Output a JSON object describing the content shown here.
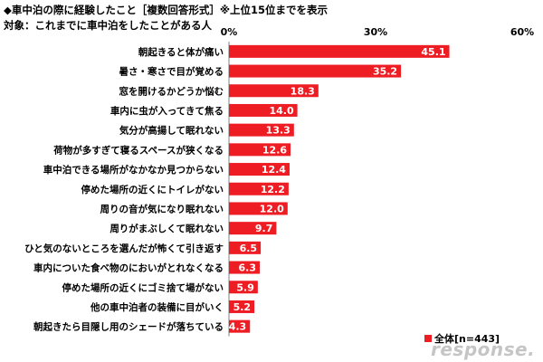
{
  "title": "◆車中泊の際に経験したこと［複数回答形式］※上位15位までを表示",
  "subtitle": "対象：これまでに車中泊をしたことがある人",
  "legend": {
    "label": "全体[n=443]"
  },
  "watermark": "response.",
  "colors": {
    "bar": "#ee1c23",
    "axis": "#808080"
  },
  "chart_data": {
    "type": "bar",
    "orientation": "horizontal",
    "categories": [
      "朝起きると体が痛い",
      "暑さ・寒さで目が覚める",
      "窓を開けるかどうか悩む",
      "車内に虫が入ってきて焦る",
      "気分が高揚して眠れない",
      "荷物が多すぎて寝るスペースが狭くなる",
      "車中泊できる場所がなかなか見つからない",
      "停めた場所の近くにトイレがない",
      "周りの音が気になり眠れない",
      "周りがまぶしくて眠れない",
      "ひと気のないところを選んだが怖くて引き返す",
      "車内についた食べ物のにおいがとれなくなる",
      "停めた場所の近くにゴミ捨て場がない",
      "他の車中泊者の装備に目がいく",
      "朝起きたら目隠し用のシェードが落ちている"
    ],
    "series": [
      {
        "name": "全体[n=443]",
        "values": [
          45.1,
          35.2,
          18.3,
          14.0,
          13.3,
          12.6,
          12.4,
          12.2,
          12.0,
          9.7,
          6.5,
          6.3,
          5.9,
          5.2,
          4.3
        ],
        "labels": [
          "45.1",
          "35.2",
          "18.3",
          "14.0",
          "13.3",
          "12.6",
          "12.4",
          "12.2",
          "12.0",
          "9.7",
          "6.5",
          "6.3",
          "5.9",
          "5.2",
          "4.3"
        ]
      }
    ],
    "xlim": [
      0,
      60
    ],
    "xticks": [
      0,
      30,
      60
    ],
    "xtick_labels": [
      "0%",
      "30%",
      "60%"
    ],
    "grid": false,
    "legend_position": "bottom-right"
  }
}
